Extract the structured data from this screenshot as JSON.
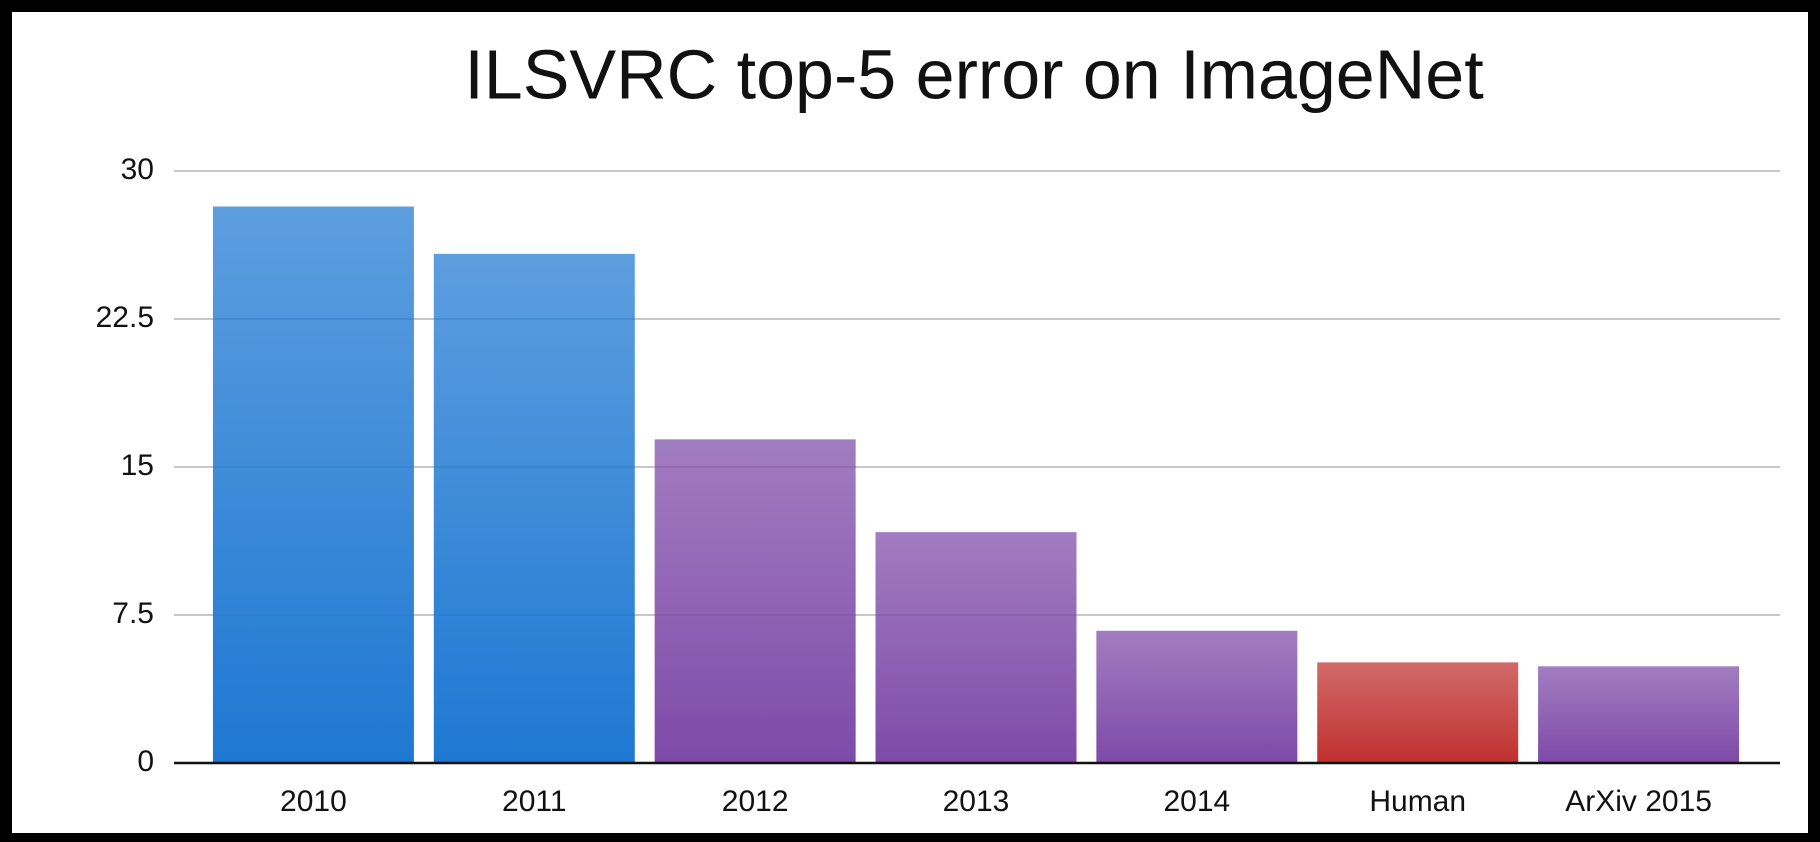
{
  "chart_data": {
    "type": "bar",
    "title": "ILSVRC top-5 error on ImageNet",
    "categories": [
      "2010",
      "2011",
      "2012",
      "2013",
      "2014",
      "Human",
      "ArXiv 2015"
    ],
    "values": [
      28.2,
      25.8,
      16.4,
      11.7,
      6.7,
      5.1,
      4.9
    ],
    "colors": [
      "#1e78d2",
      "#1e78d2",
      "#7e4aa8",
      "#7e4aa8",
      "#7e4aa8",
      "#c0302f",
      "#7e4aa8"
    ],
    "ylim": [
      0,
      30
    ],
    "yticks": [
      0,
      7.5,
      15,
      22.5,
      30
    ],
    "grid": true
  }
}
